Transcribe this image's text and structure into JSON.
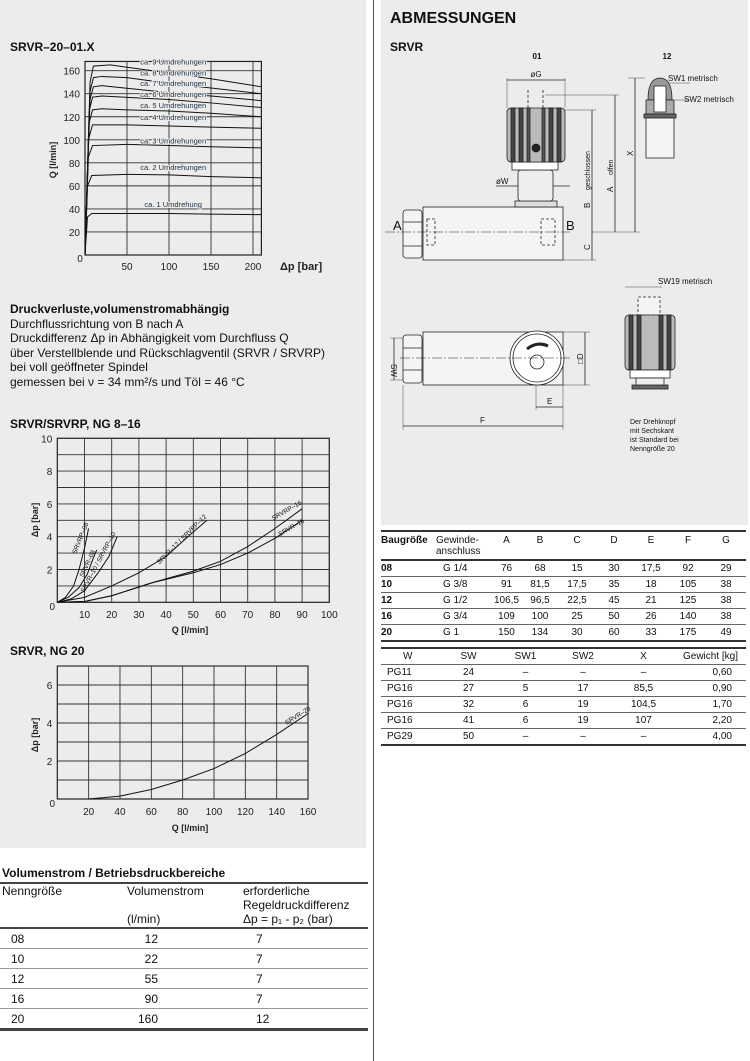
{
  "left": {
    "chart1_title": "SRVR–20–01.X",
    "description": {
      "heading": "Druckverluste,volumenstromabhängig",
      "lines": [
        "Durchflussrichtung von B nach A",
        "Druckdifferenz Δp in Abhängigkeit vom Durchfluss Q",
        "über Verstellblende und Rückschlagventil (SRVR / SRVRP)",
        "bei voll geöffneter Spindel",
        "gemessen bei ν = 34 mm²/s und Töl = 46 °C"
      ]
    },
    "chart2_title": "SRVR/SRVRP, NG 8–16",
    "chart3_title": "SRVR, NG 20"
  },
  "flow_table": {
    "title": "Volumenstrom / Betriebsdruckbereiche",
    "headers": {
      "size": "Nenngröße",
      "flow": "Volumenstrom",
      "flow_unit": "(l/min)",
      "dp_line1": "erforderliche",
      "dp_line2": "Regeldruckdifferenz",
      "dp_line3": "Δp = p₁ - p₂ (bar)"
    },
    "rows": [
      {
        "size": "08",
        "flow": "12",
        "dp": "7"
      },
      {
        "size": "10",
        "flow": "22",
        "dp": "7"
      },
      {
        "size": "12",
        "flow": "55",
        "dp": "7"
      },
      {
        "size": "16",
        "flow": "90",
        "dp": "7"
      },
      {
        "size": "20",
        "flow": "160",
        "dp": "12"
      }
    ]
  },
  "right": {
    "heading": "ABMESSUNGEN",
    "subheading": "SRVR",
    "drawing": {
      "view_01": "01",
      "view_12": "12",
      "dia_g": "øG",
      "dia_w": "øW",
      "port_a": "A",
      "port_b": "B",
      "dim_a": "A",
      "dim_b": "B",
      "dim_c": "C",
      "dim_x": "X",
      "closed": "geschlossen",
      "open": "offen",
      "sw1": "SW1 metrisch",
      "sw2": "SW2 metrisch",
      "sw19": "SW19 metrisch",
      "dim_sw": "SW",
      "dim_d": "□D",
      "dim_e": "E",
      "dim_f": "F",
      "note": [
        "Der Drehknopf",
        "mit Sechskant",
        "ist Standard bei",
        "Nenngröße 20"
      ]
    },
    "dim_table": {
      "headers": [
        "Baugröße",
        "Gewinde-\nanschluss",
        "A",
        "B",
        "C",
        "D",
        "E",
        "F",
        "G"
      ],
      "header_gewinde_1": "Gewinde-",
      "header_gewinde_2": "anschluss",
      "rows": [
        [
          "08",
          "G 1/4",
          "76",
          "68",
          "15",
          "30",
          "17,5",
          "92",
          "29"
        ],
        [
          "10",
          "G 3/8",
          "91",
          "81,5",
          "17,5",
          "35",
          "18",
          "105",
          "38"
        ],
        [
          "12",
          "G 1/2",
          "106,5",
          "96,5",
          "22,5",
          "45",
          "21",
          "125",
          "38"
        ],
        [
          "16",
          "G 3/4",
          "109",
          "100",
          "25",
          "50",
          "26",
          "140",
          "38"
        ],
        [
          "20",
          "G 1",
          "150",
          "134",
          "30",
          "60",
          "33",
          "175",
          "49"
        ]
      ]
    },
    "weight_table": {
      "headers": [
        "W",
        "SW",
        "SW1",
        "SW2",
        "X",
        "Gewicht [kg]"
      ],
      "rows": [
        [
          "PG11",
          "24",
          "–",
          "–",
          "–",
          "0,60"
        ],
        [
          "PG16",
          "27",
          "5",
          "17",
          "85,5",
          "0,90"
        ],
        [
          "PG16",
          "32",
          "6",
          "19",
          "104,5",
          "1,70"
        ],
        [
          "PG16",
          "41",
          "6",
          "19",
          "107",
          "2,20"
        ],
        [
          "PG29",
          "50",
          "–",
          "–",
          "–",
          "4,00"
        ]
      ]
    }
  },
  "chart_data": [
    {
      "type": "line",
      "title": "SRVR–20–01.X",
      "xlabel": "Δp [bar]",
      "ylabel": "Q [l/min]",
      "xlim": [
        0,
        210
      ],
      "ylim": [
        0,
        168
      ],
      "x_ticks": [
        "0",
        "50",
        "100",
        "150",
        "200"
      ],
      "y_ticks": [
        "20",
        "40",
        "60",
        "80",
        "100",
        "120",
        "140",
        "160"
      ],
      "grid": true,
      "series": [
        {
          "name": "ca. 1 Umdrehung",
          "points": [
            [
              0,
              0
            ],
            [
              3,
              33
            ],
            [
              8,
              36
            ],
            [
              50,
              36
            ],
            [
              100,
              36
            ],
            [
              150,
              35.5
            ],
            [
              210,
              35
            ]
          ]
        },
        {
          "name": "ca. 2 Umdrehungen",
          "points": [
            [
              0,
              0
            ],
            [
              3,
              60
            ],
            [
              8,
              69
            ],
            [
              50,
              70
            ],
            [
              100,
              69.5
            ],
            [
              150,
              68
            ],
            [
              210,
              67
            ]
          ]
        },
        {
          "name": "ca. 3 Umdrehungen",
          "points": [
            [
              0,
              0
            ],
            [
              4,
              85
            ],
            [
              9,
              95
            ],
            [
              50,
              96
            ],
            [
              100,
              95
            ],
            [
              150,
              94
            ],
            [
              210,
              93
            ]
          ]
        },
        {
          "name": "ca. 4 Umdrehungen",
          "points": [
            [
              0,
              0
            ],
            [
              4,
              100
            ],
            [
              9,
              113
            ],
            [
              50,
              113
            ],
            [
              100,
              112
            ],
            [
              150,
              111
            ],
            [
              210,
              110
            ]
          ]
        },
        {
          "name": "ca. 5 Umdrehungen",
          "points": [
            [
              0,
              0
            ],
            [
              5,
              115
            ],
            [
              9,
              126
            ],
            [
              20,
              127
            ],
            [
              50,
              126
            ],
            [
              100,
              125
            ],
            [
              150,
              123
            ],
            [
              210,
              120
            ]
          ]
        },
        {
          "name": "ca. 6 Umdrehungen",
          "points": [
            [
              0,
              0
            ],
            [
              5,
              125
            ],
            [
              9,
              137
            ],
            [
              20,
              138
            ],
            [
              100,
              135
            ],
            [
              150,
              132
            ],
            [
              210,
              128
            ]
          ]
        },
        {
          "name": "ca. 7 Umdrehungen",
          "points": [
            [
              0,
              0
            ],
            [
              6,
              135
            ],
            [
              10,
              146
            ],
            [
              20,
              147
            ],
            [
              100,
              141
            ],
            [
              150,
              138
            ],
            [
              210,
              134
            ]
          ]
        },
        {
          "name": "ca. 8 Umdrehungen",
          "points": [
            [
              0,
              0
            ],
            [
              6,
              142
            ],
            [
              10,
              154
            ],
            [
              20,
              155
            ],
            [
              50,
              154
            ],
            [
              100,
              149
            ],
            [
              150,
              145
            ],
            [
              210,
              140
            ]
          ]
        },
        {
          "name": "ca. 9 Umdrehungen",
          "points": [
            [
              0,
              0
            ],
            [
              6,
              150
            ],
            [
              10,
              164
            ],
            [
              30,
              165
            ],
            [
              100,
              158
            ],
            [
              150,
              153
            ],
            [
              210,
              146
            ]
          ]
        }
      ]
    },
    {
      "type": "line",
      "title": "SRVR/SRVRP, NG 8–16",
      "xlabel": "Q [l/min]",
      "ylabel": "Δp [bar]",
      "xlim": [
        0,
        100
      ],
      "ylim": [
        0,
        10
      ],
      "x_ticks": [
        "0",
        "10",
        "20",
        "30",
        "40",
        "50",
        "60",
        "70",
        "80",
        "90",
        "100"
      ],
      "y_ticks": [
        "2",
        "4",
        "6",
        "8",
        "10"
      ],
      "grid": true,
      "series": [
        {
          "name": "SRVRP–08",
          "points": [
            [
              0,
              0
            ],
            [
              3,
              0.3
            ],
            [
              6,
              1.0
            ],
            [
              8,
              2.0
            ],
            [
              10,
              3.3
            ],
            [
              11.5,
              4.5
            ]
          ]
        },
        {
          "name": "SRVR–08",
          "points": [
            [
              0,
              0
            ],
            [
              4,
              0.3
            ],
            [
              8,
              0.9
            ],
            [
              11,
              1.7
            ],
            [
              13,
              2.6
            ],
            [
              14.5,
              3.2
            ]
          ]
        },
        {
          "name": "SRVR–10 / SRVRP–10",
          "points": [
            [
              0,
              0
            ],
            [
              5,
              0.2
            ],
            [
              10,
              0.7
            ],
            [
              15,
              1.8
            ],
            [
              19,
              2.8
            ],
            [
              22,
              4.0
            ]
          ]
        },
        {
          "name": "SRVR–12 / SRVRP–12",
          "points": [
            [
              0,
              0
            ],
            [
              10,
              0.3
            ],
            [
              20,
              1.0
            ],
            [
              30,
              1.8
            ],
            [
              40,
              2.8
            ],
            [
              48,
              4.0
            ],
            [
              55,
              5.0
            ]
          ]
        },
        {
          "name": "SRVRP–16",
          "points": [
            [
              0,
              0
            ],
            [
              10,
              0.05
            ],
            [
              20,
              0.4
            ],
            [
              35,
              1.2
            ],
            [
              50,
              1.9
            ],
            [
              60,
              2.5
            ],
            [
              70,
              3.4
            ],
            [
              80,
              4.5
            ],
            [
              90,
              5.7
            ]
          ]
        },
        {
          "name": "SRVR–16",
          "points": [
            [
              0,
              0
            ],
            [
              10,
              0.05
            ],
            [
              20,
              0.4
            ],
            [
              35,
              1.2
            ],
            [
              50,
              1.8
            ],
            [
              60,
              2.3
            ],
            [
              70,
              3.0
            ],
            [
              80,
              3.9
            ],
            [
              90,
              5.0
            ]
          ]
        }
      ]
    },
    {
      "type": "line",
      "title": "SRVR, NG 20",
      "xlabel": "Q [l/min]",
      "ylabel": "Δp [bar]",
      "xlim": [
        0,
        160
      ],
      "ylim": [
        0,
        7
      ],
      "x_ticks": [
        "0",
        "20",
        "40",
        "60",
        "80",
        "100",
        "120",
        "140",
        "160"
      ],
      "y_ticks": [
        "2",
        "4",
        "6"
      ],
      "grid": true,
      "series": [
        {
          "name": "SRVR–20",
          "points": [
            [
              20,
              0
            ],
            [
              40,
              0.15
            ],
            [
              60,
              0.5
            ],
            [
              80,
              1.0
            ],
            [
              100,
              1.6
            ],
            [
              120,
              2.4
            ],
            [
              140,
              3.4
            ],
            [
              160,
              4.5
            ]
          ]
        }
      ]
    }
  ]
}
